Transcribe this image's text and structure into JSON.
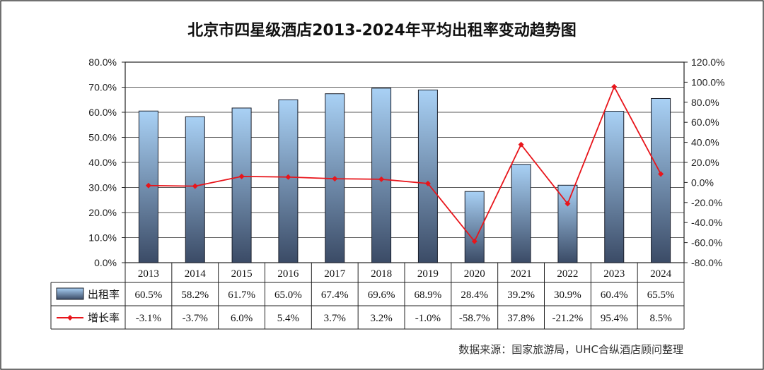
{
  "chart_data": {
    "type": "bar",
    "title": "北京市四星级酒店2013-2024年平均出租率变动趋势图",
    "categories": [
      "2013",
      "2014",
      "2015",
      "2016",
      "2017",
      "2018",
      "2019",
      "2020",
      "2021",
      "2022",
      "2023",
      "2024"
    ],
    "series": [
      {
        "name": "出租率",
        "type": "bar",
        "axis": "left",
        "values": [
          60.5,
          58.2,
          61.7,
          65.0,
          67.4,
          69.6,
          68.9,
          28.4,
          39.2,
          30.9,
          60.4,
          65.5
        ],
        "labels": [
          "60.5%",
          "58.2%",
          "61.7%",
          "65.0%",
          "67.4%",
          "69.6%",
          "68.9%",
          "28.4%",
          "39.2%",
          "30.9%",
          "60.4%",
          "65.5%"
        ],
        "color_top": "#a9d1f5",
        "color_bottom": "#3b4b66"
      },
      {
        "name": "增长率",
        "type": "line",
        "axis": "right",
        "values": [
          -3.1,
          -3.7,
          6.0,
          5.4,
          3.7,
          3.2,
          -1.0,
          -58.7,
          37.8,
          -21.2,
          95.4,
          8.5
        ],
        "labels": [
          "-3.1%",
          "-3.7%",
          "6.0%",
          "5.4%",
          "3.7%",
          "3.2%",
          "-1.0%",
          "-58.7%",
          "37.8%",
          "-21.2%",
          "95.4%",
          "8.5%"
        ],
        "color": "#e8151b"
      }
    ],
    "left_axis": {
      "ylim": [
        0,
        80
      ],
      "ticks": [
        "0.0%",
        "10.0%",
        "20.0%",
        "30.0%",
        "40.0%",
        "50.0%",
        "60.0%",
        "70.0%",
        "80.0%"
      ]
    },
    "right_axis": {
      "ylim": [
        -80,
        120
      ],
      "ticks": [
        "-80.0%",
        "-60.0%",
        "-40.0%",
        "-20.0%",
        "0.0%",
        "20.0%",
        "40.0%",
        "60.0%",
        "80.0%",
        "100.0%",
        "120.0%"
      ]
    },
    "grid": true,
    "legend": "data-table",
    "source": "数据来源：国家旅游局，UHC合纵酒店顾问整理"
  }
}
